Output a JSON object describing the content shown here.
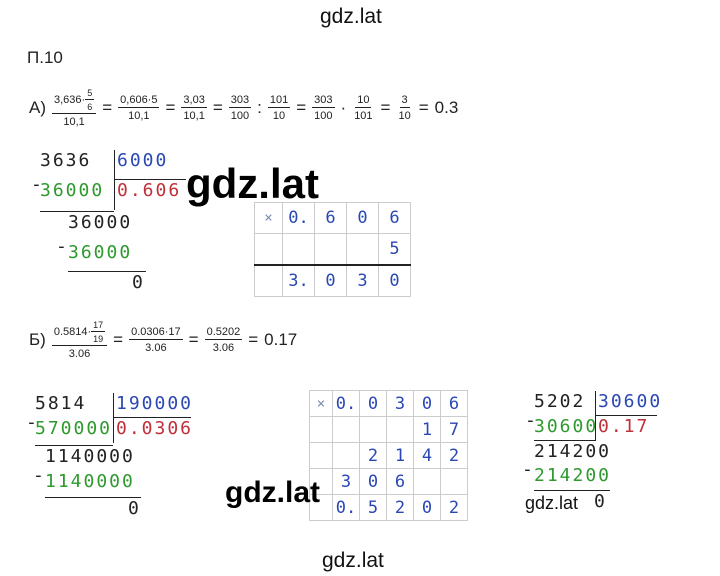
{
  "watermarks": [
    "gdz.lat",
    "gdz.lat",
    "gdz.lat",
    "gdz.lat",
    "gdz.lat"
  ],
  "heading": "П.10",
  "part_a": {
    "label": "А)",
    "expression": [
      {
        "num": "3,636·",
        "num_frac": {
          "num": "5",
          "den": "6"
        },
        "den": "10,1"
      },
      {
        "op": "="
      },
      {
        "num": "0,606·5",
        "den": "10,1"
      },
      {
        "op": "="
      },
      {
        "num": "3,03",
        "den": "10,1"
      },
      {
        "op": "="
      },
      {
        "num": "303",
        "den": "100"
      },
      {
        "op": ":"
      },
      {
        "num": "101",
        "den": "10"
      },
      {
        "op": "="
      },
      {
        "num": "303",
        "den": "100"
      },
      {
        "op": "·"
      },
      {
        "num": "10",
        "den": "101"
      },
      {
        "op": "="
      },
      {
        "num": "3",
        "den": "10"
      },
      {
        "op": "="
      },
      {
        "op": "0.3"
      }
    ],
    "division": {
      "dividend": "3636",
      "divisor": "6000",
      "product": "36000",
      "quotient": "0.606",
      "remainder": "36000",
      "product_2": "36000",
      "result": "0",
      "minus": "-"
    },
    "multiplication": [
      [
        "×",
        "0.",
        "6",
        "0",
        "6"
      ],
      [
        null,
        null,
        null,
        null,
        "5"
      ],
      [
        null,
        "3.",
        "0",
        "3",
        "0"
      ]
    ]
  },
  "part_b": {
    "label": "Б)",
    "expression": [
      {
        "num": "0.5814·",
        "num_frac": {
          "num": "17",
          "den": "19"
        },
        "den": "3.06"
      },
      {
        "op": "="
      },
      {
        "num": "0.0306·17",
        "den": "3.06"
      },
      {
        "op": "="
      },
      {
        "num": "0.5202",
        "den": "3.06"
      },
      {
        "op": "="
      },
      {
        "op": "0.17"
      }
    ],
    "division_1": {
      "dividend": "5814",
      "divisor": "190000",
      "product": "570000",
      "quotient": "0.0306",
      "remainder": "1140000",
      "product_2": "1140000",
      "result": "0",
      "minus": "-"
    },
    "multiplication": [
      [
        "×",
        "0.",
        "0",
        "3",
        "0",
        "6"
      ],
      [
        null,
        null,
        null,
        null,
        "1",
        "7"
      ],
      [
        null,
        null,
        "2",
        "1",
        "4",
        "2"
      ],
      [
        null,
        "3",
        "0",
        "6",
        null,
        null
      ],
      [
        null,
        "0.",
        "5",
        "2",
        "0",
        "2"
      ]
    ],
    "division_2": {
      "dividend": "5202",
      "divisor": "30600",
      "product": "30600",
      "quotient": "0.17",
      "remainder": "214200",
      "product_2": "214200",
      "result": "0",
      "minus": "-"
    }
  }
}
